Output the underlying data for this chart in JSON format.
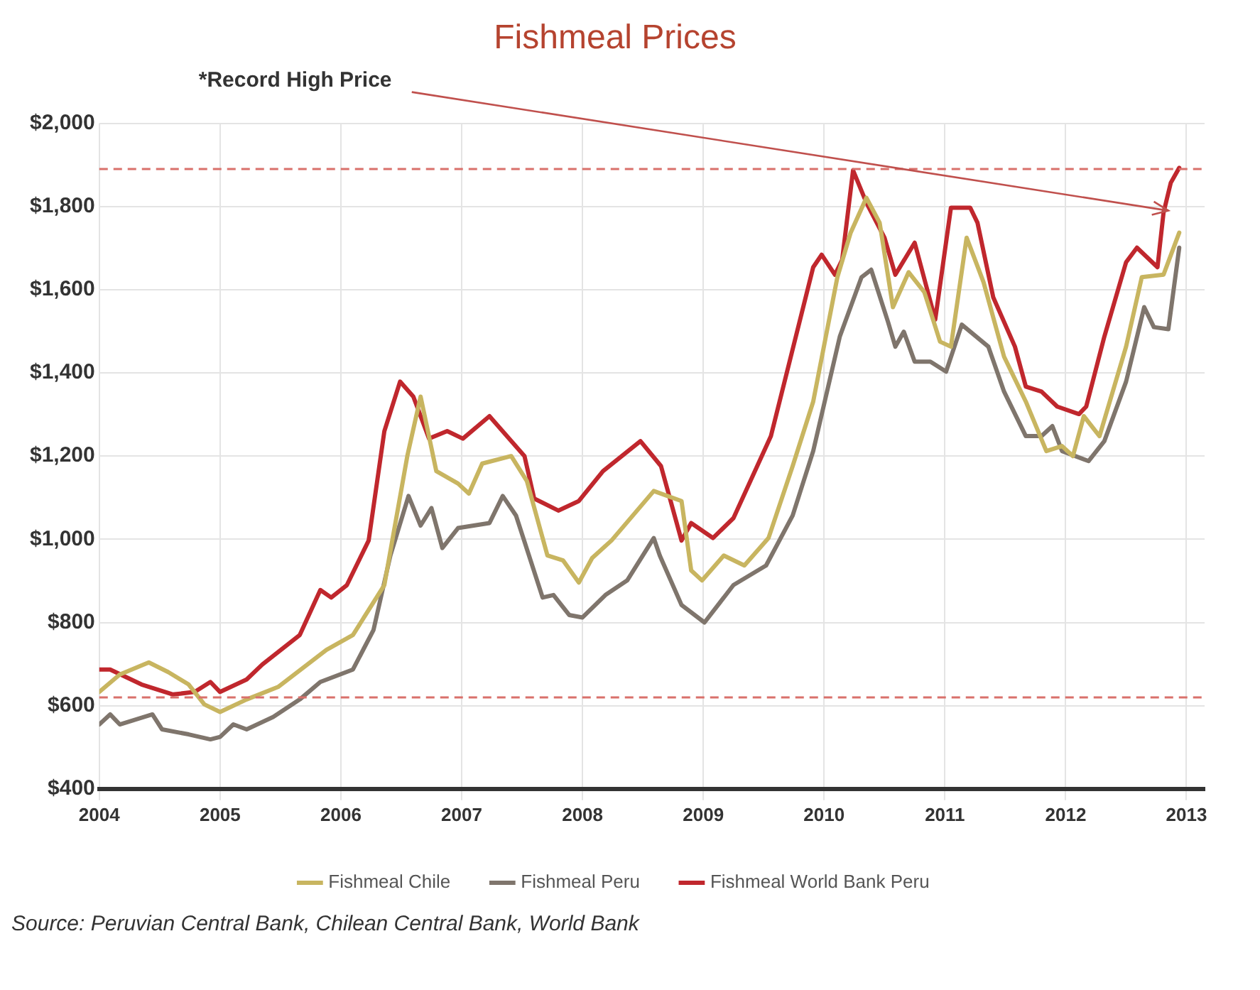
{
  "chart_data": {
    "type": "line",
    "title": "Fishmeal Prices",
    "xlim": [
      2004,
      2013.15
    ],
    "xticks": [
      2004,
      2005,
      2006,
      2007,
      2008,
      2009,
      2010,
      2011,
      2012,
      2013
    ],
    "ylim": [
      400,
      2000
    ],
    "yticks": [
      {
        "value": 400,
        "label": "$400"
      },
      {
        "value": 600,
        "label": "$600"
      },
      {
        "value": 800,
        "label": "$800"
      },
      {
        "value": 1000,
        "label": "$1,000"
      },
      {
        "value": 1200,
        "label": "$1,200"
      },
      {
        "value": 1400,
        "label": "$1,400"
      },
      {
        "value": 1600,
        "label": "$1,600"
      },
      {
        "value": 1800,
        "label": "$1,800"
      },
      {
        "value": 2000,
        "label": "$2,000"
      }
    ],
    "grid": true,
    "legend": "bottom",
    "marker": "none",
    "line_style": "solid",
    "series": [
      {
        "name": "Fishmeal Chile",
        "color": "#c8b560",
        "x": [
          2004.0,
          2004.17,
          2004.41,
          2004.57,
          2004.74,
          2004.87,
          2005.0,
          2005.22,
          2005.48,
          2005.88,
          2006.1,
          2006.36,
          2006.55,
          2006.66,
          2006.79,
          2006.97,
          2007.06,
          2007.17,
          2007.41,
          2007.54,
          2007.71,
          2007.84,
          2007.97,
          2008.08,
          2008.24,
          2008.59,
          2008.82,
          2008.9,
          2008.99,
          2009.17,
          2009.34,
          2009.54,
          2009.74,
          2009.91,
          2010.11,
          2010.22,
          2010.35,
          2010.46,
          2010.57,
          2010.7,
          2010.83,
          2010.96,
          2011.05,
          2011.18,
          2011.32,
          2011.49,
          2011.67,
          2011.84,
          2011.97,
          2012.06,
          2012.15,
          2012.28,
          2012.5,
          2012.63,
          2012.81,
          2012.94
        ],
        "values": [
          633,
          675,
          704,
          681,
          651,
          603,
          585,
          615,
          645,
          734,
          770,
          890,
          1200,
          1343,
          1164,
          1134,
          1110,
          1182,
          1200,
          1140,
          961,
          949,
          896,
          955,
          997,
          1116,
          1092,
          925,
          901,
          961,
          937,
          1003,
          1176,
          1331,
          1630,
          1737,
          1821,
          1761,
          1558,
          1642,
          1594,
          1475,
          1463,
          1725,
          1618,
          1439,
          1331,
          1212,
          1224,
          1200,
          1296,
          1248,
          1463,
          1630,
          1636,
          1737
        ]
      },
      {
        "name": "Fishmeal Peru",
        "color": "#7f756c",
        "x": [
          2004.0,
          2004.09,
          2004.17,
          2004.44,
          2004.52,
          2004.74,
          2004.92,
          2005.0,
          2005.11,
          2005.22,
          2005.44,
          2005.66,
          2005.83,
          2006.1,
          2006.27,
          2006.41,
          2006.56,
          2006.66,
          2006.75,
          2006.84,
          2006.97,
          2007.23,
          2007.34,
          2007.45,
          2007.67,
          2007.76,
          2007.89,
          2008.0,
          2008.19,
          2008.37,
          2008.59,
          2008.64,
          2008.82,
          2009.01,
          2009.25,
          2009.52,
          2009.74,
          2009.91,
          2010.13,
          2010.31,
          2010.39,
          2010.53,
          2010.59,
          2010.66,
          2010.75,
          2010.88,
          2011.01,
          2011.14,
          2011.36,
          2011.49,
          2011.67,
          2011.8,
          2011.89,
          2011.97,
          2012.19,
          2012.32,
          2012.5,
          2012.65,
          2012.73,
          2012.85,
          2012.94
        ],
        "values": [
          555,
          579,
          555,
          579,
          543,
          531,
          519,
          525,
          555,
          543,
          573,
          615,
          657,
          687,
          782,
          961,
          1104,
          1033,
          1075,
          979,
          1027,
          1039,
          1104,
          1057,
          860,
          866,
          818,
          812,
          866,
          901,
          1003,
          961,
          842,
          800,
          890,
          937,
          1057,
          1212,
          1487,
          1630,
          1648,
          1522,
          1463,
          1499,
          1427,
          1427,
          1403,
          1516,
          1463,
          1355,
          1248,
          1248,
          1272,
          1212,
          1188,
          1236,
          1379,
          1558,
          1510,
          1505,
          1701
        ]
      },
      {
        "name": "Fishmeal World Bank Peru",
        "color": "#c0272d",
        "x": [
          2004.0,
          2004.09,
          2004.35,
          2004.61,
          2004.79,
          2004.92,
          2005.0,
          2005.22,
          2005.35,
          2005.66,
          2005.83,
          2005.92,
          2006.05,
          2006.23,
          2006.36,
          2006.49,
          2006.6,
          2006.73,
          2006.88,
          2007.01,
          2007.23,
          2007.52,
          2007.6,
          2007.8,
          2007.97,
          2008.17,
          2008.48,
          2008.65,
          2008.82,
          2008.9,
          2009.08,
          2009.25,
          2009.56,
          2009.91,
          2009.98,
          2010.09,
          2010.15,
          2010.24,
          2010.35,
          2010.5,
          2010.59,
          2010.75,
          2010.92,
          2011.05,
          2011.21,
          2011.27,
          2011.4,
          2011.58,
          2011.67,
          2011.8,
          2011.93,
          2012.11,
          2012.17,
          2012.32,
          2012.5,
          2012.59,
          2012.76,
          2012.81,
          2012.87,
          2012.94
        ],
        "values": [
          687,
          687,
          651,
          627,
          633,
          657,
          633,
          663,
          699,
          770,
          878,
          860,
          890,
          997,
          1260,
          1379,
          1343,
          1242,
          1260,
          1242,
          1296,
          1200,
          1098,
          1069,
          1092,
          1164,
          1236,
          1176,
          997,
          1039,
          1003,
          1051,
          1248,
          1654,
          1684,
          1636,
          1672,
          1887,
          1809,
          1725,
          1636,
          1713,
          1528,
          1797,
          1797,
          1761,
          1582,
          1463,
          1367,
          1355,
          1319,
          1301,
          1319,
          1487,
          1666,
          1701,
          1654,
          1785,
          1857,
          1893
        ]
      }
    ],
    "ref_lines": [
      {
        "axis": "y",
        "value": 1890,
        "color": "#d9706b",
        "line_style": "dashed"
      },
      {
        "axis": "y",
        "value": 620,
        "color": "#d9706b",
        "line_style": "dashed"
      }
    ],
    "annotations": [
      {
        "text": "*Record High Price",
        "x": 2012.85,
        "y": 1790
      },
      "Source: Peruvian Central Bank, Chilean Central Bank, World Bank"
    ]
  }
}
